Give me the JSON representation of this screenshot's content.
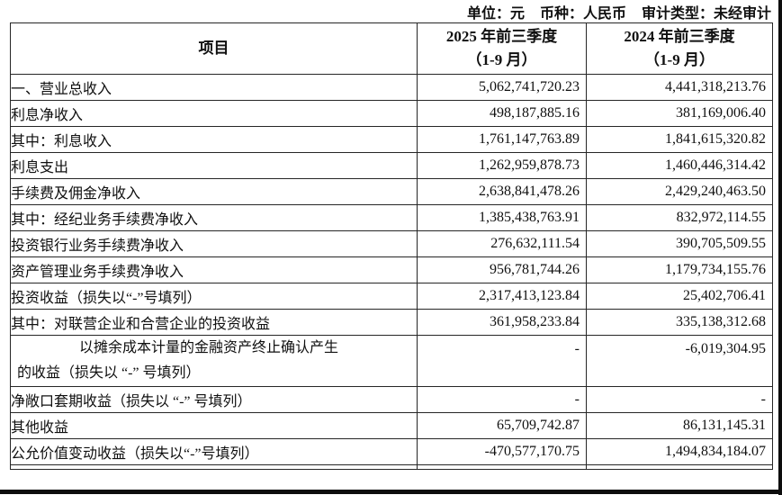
{
  "meta": {
    "unit": "单位：元",
    "currency": "币种：人民币",
    "audit": "审计类型：未经审计"
  },
  "table": {
    "headers": {
      "item": "项目",
      "y2025_line1": "2025 年前三季度",
      "y2025_line2": "（1-9 月）",
      "y2024_line1": "2024 年前三季度",
      "y2024_line2": "（1-9 月）"
    },
    "rows": [
      {
        "label": "一、营业总收入",
        "v2025": "5,062,741,720.23",
        "v2024": "4,441,318,213.76",
        "indent": 0
      },
      {
        "label": "利息净收入",
        "v2025": "498,187,885.16",
        "v2024": "381,169,006.40",
        "indent": 1
      },
      {
        "label": "其中：利息收入",
        "v2025": "1,761,147,763.89",
        "v2024": "1,841,615,320.82",
        "indent": 1
      },
      {
        "label": "利息支出",
        "v2025": "1,262,959,878.73",
        "v2024": "1,460,446,314.42",
        "indent": 2
      },
      {
        "label": "手续费及佣金净收入",
        "v2025": "2,638,841,478.26",
        "v2024": "2,429,240,463.50",
        "indent": 1
      },
      {
        "label": "其中：经纪业务手续费净收入",
        "v2025": "1,385,438,763.91",
        "v2024": "832,972,114.55",
        "indent": 1
      },
      {
        "label": "投资银行业务手续费净收入",
        "v2025": "276,632,111.54",
        "v2024": "390,705,509.55",
        "indent": 2
      },
      {
        "label": "资产管理业务手续费净收入",
        "v2025": "956,781,744.26",
        "v2024": "1,179,734,155.76",
        "indent": 2
      },
      {
        "label": "投资收益（损失以“-”号填列）",
        "v2025": "2,317,413,123.84",
        "v2024": "25,402,706.41",
        "indent": 1
      },
      {
        "label": "其中：对联营企业和合营企业的投资收益",
        "v2025": "361,958,233.84",
        "v2024": "335,138,312.68",
        "indent": 1
      },
      {
        "label": "以摊余成本计量的金融资产终止确认产生",
        "label2": "的收益（损失以 “-” 号填列）",
        "v2025": "-",
        "v2024": "-6,019,304.95",
        "indent": 1,
        "tall": true
      },
      {
        "label": "净敞口套期收益（损失以 “-” 号填列）",
        "v2025": "-",
        "v2024": "-",
        "indent": 1
      },
      {
        "label": "其他收益",
        "v2025": "65,709,742.87",
        "v2024": "86,131,145.31",
        "indent": 1
      },
      {
        "label": "公允价值变动收益（损失以“-”号填列）",
        "v2025": "-470,577,170.75",
        "v2024": "1,494,834,184.07",
        "indent": 1
      }
    ]
  }
}
